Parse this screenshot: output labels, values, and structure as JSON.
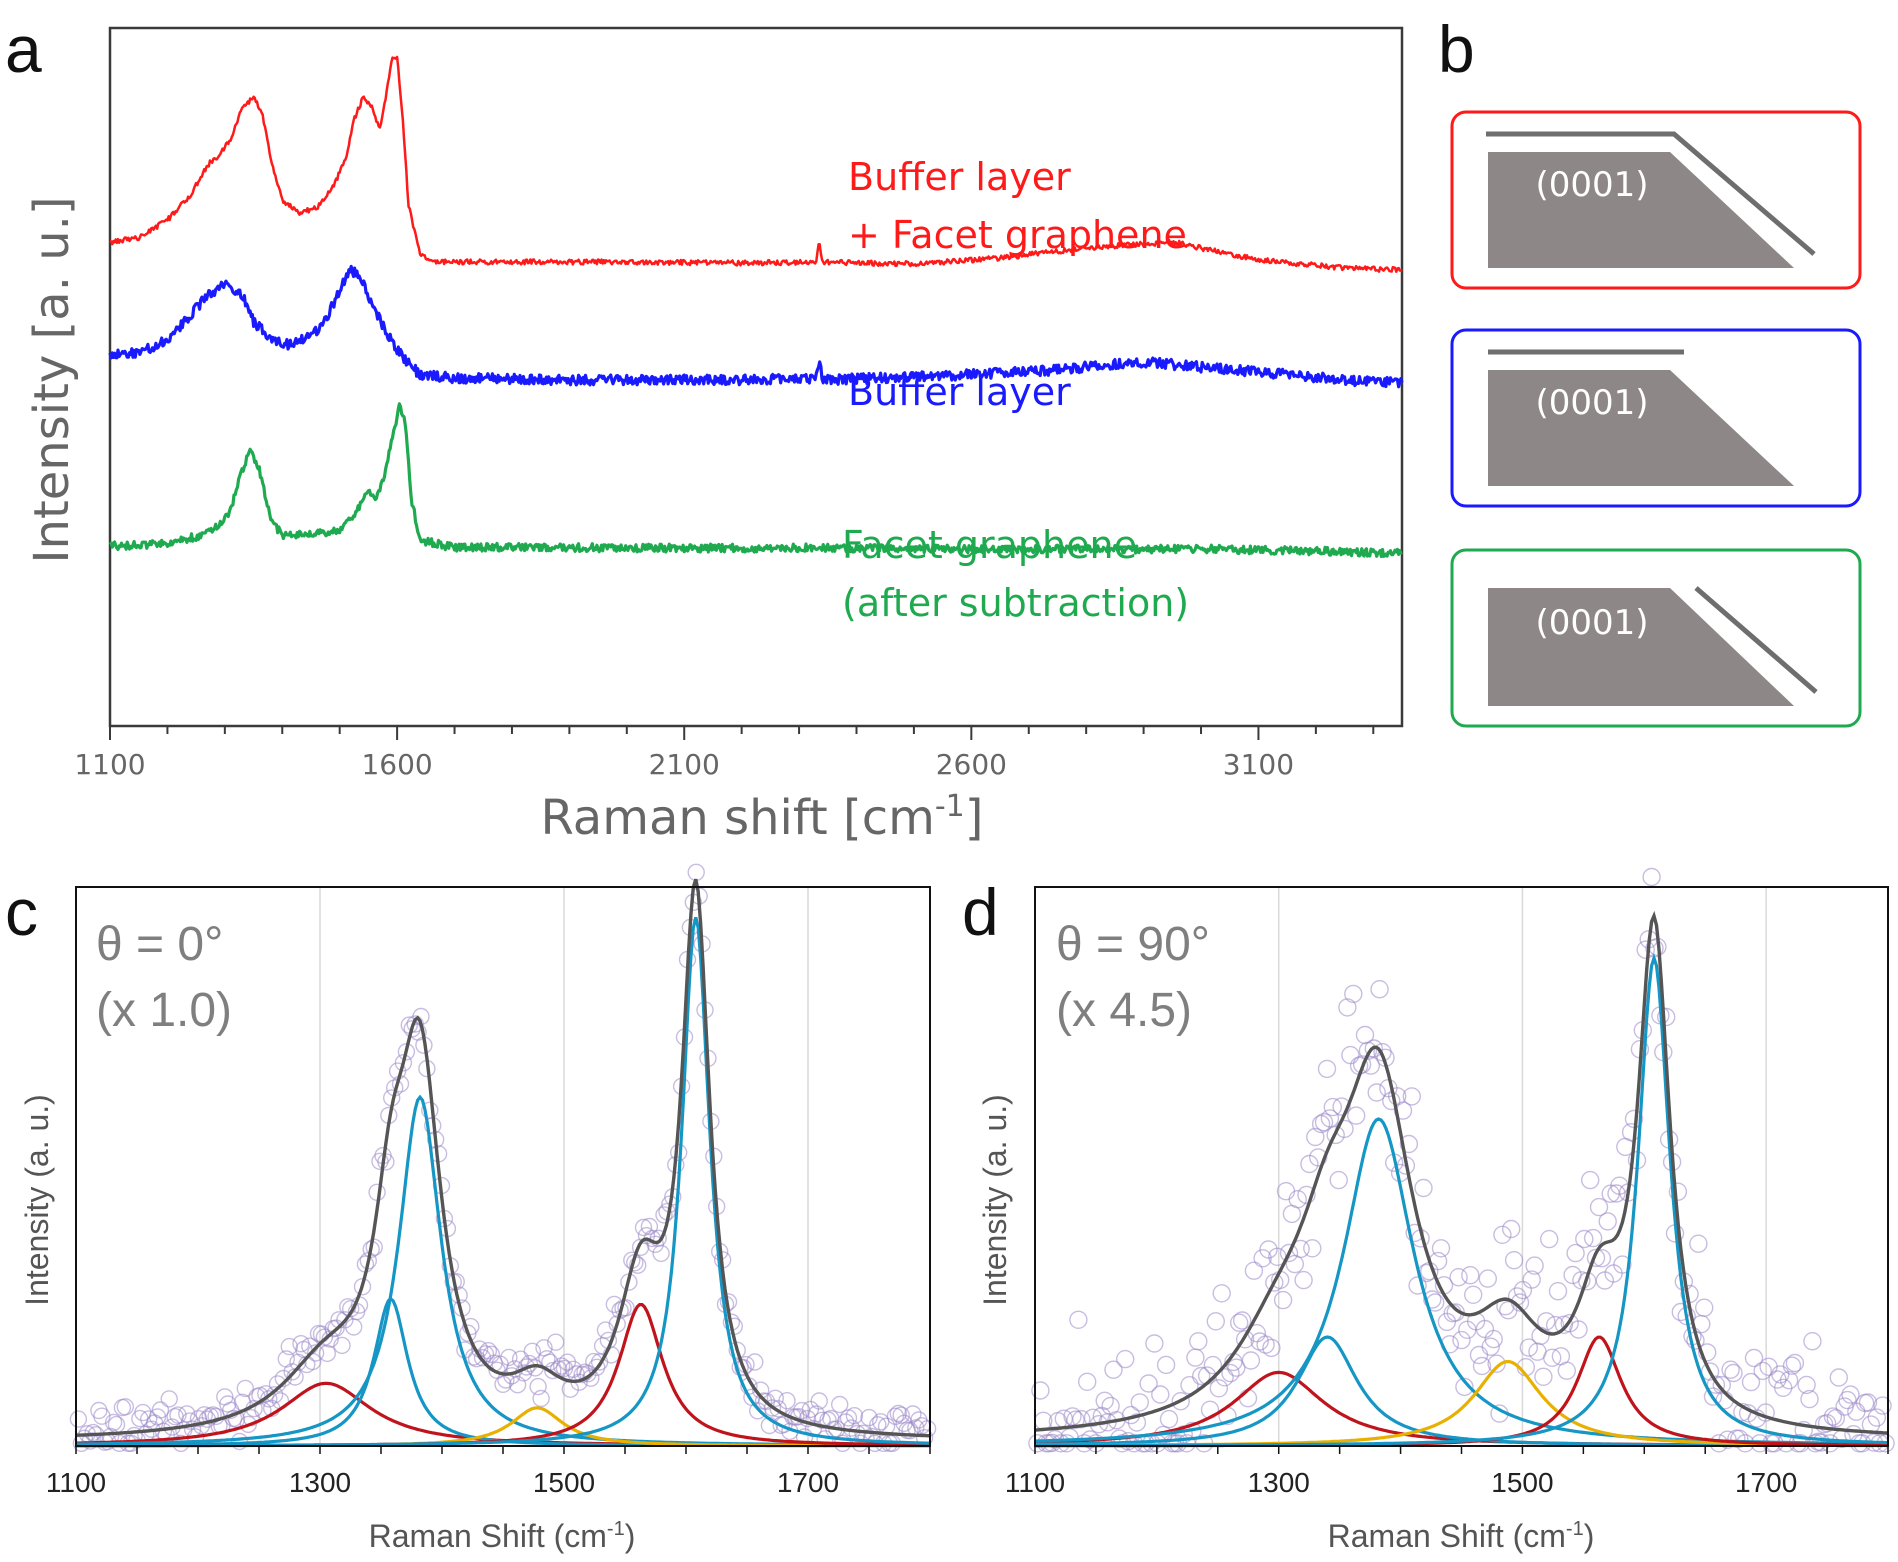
{
  "figure": {
    "panel_letters": [
      "a",
      "b",
      "c",
      "d"
    ]
  },
  "colors": {
    "red": "#ff1a1a",
    "blue": "#1a1aff",
    "green": "#1faa50",
    "gray": "#6e6e6e",
    "cyan": "#1596c4",
    "crimson": "#c0141c",
    "gold": "#e8b000",
    "envelope": "#555555",
    "dots": "#9b86c8"
  },
  "chart_data": [
    {
      "id": "a",
      "type": "line",
      "xlabel": "Raman shift [cm-1]",
      "xlabel_main": "Raman shift [cm",
      "xlabel_sup": "-1",
      "xlabel_tail": "]",
      "ylabel": "Intensity [a. u.]",
      "xlim": [
        1100,
        3350
      ],
      "x_ticks": [
        1100,
        1600,
        2100,
        2600,
        3100
      ],
      "series": [
        {
          "name": "Buffer layer + Facet graphene",
          "label_lines": [
            "Buffer layer",
            "+ Facet graphene"
          ],
          "color_key": "red",
          "noise": 2.5,
          "points": [
            [
              1100,
              242
            ],
            [
              1150,
              238
            ],
            [
              1200,
              220
            ],
            [
              1240,
              195
            ],
            [
              1270,
              165
            ],
            [
              1290,
              155
            ],
            [
              1310,
              140
            ],
            [
              1330,
              108
            ],
            [
              1350,
              97
            ],
            [
              1365,
              112
            ],
            [
              1380,
              160
            ],
            [
              1400,
              200
            ],
            [
              1430,
              213
            ],
            [
              1460,
              208
            ],
            [
              1490,
              185
            ],
            [
              1510,
              160
            ],
            [
              1525,
              120
            ],
            [
              1540,
              98
            ],
            [
              1555,
              106
            ],
            [
              1570,
              128
            ],
            [
              1580,
              100
            ],
            [
              1590,
              60
            ],
            [
              1600,
              58
            ],
            [
              1610,
              120
            ],
            [
              1620,
              205
            ],
            [
              1640,
              255
            ],
            [
              1670,
              262
            ],
            [
              1800,
              262
            ],
            [
              2000,
              262
            ],
            [
              2200,
              263
            ],
            [
              2330,
              262
            ],
            [
              2335,
              240
            ],
            [
              2340,
              262
            ],
            [
              2500,
              264
            ],
            [
              2650,
              258
            ],
            [
              2800,
              248
            ],
            [
              2950,
              242
            ],
            [
              3100,
              260
            ],
            [
              3250,
              268
            ],
            [
              3350,
              270
            ]
          ]
        },
        {
          "name": "Buffer layer",
          "label_lines": [
            "Buffer layer"
          ],
          "color_key": "blue",
          "noise": 5,
          "points": [
            [
              1100,
              355
            ],
            [
              1150,
              353
            ],
            [
              1200,
              340
            ],
            [
              1240,
              315
            ],
            [
              1270,
              295
            ],
            [
              1300,
              284
            ],
            [
              1330,
              295
            ],
            [
              1350,
              322
            ],
            [
              1380,
              338
            ],
            [
              1410,
              345
            ],
            [
              1430,
              340
            ],
            [
              1460,
              330
            ],
            [
              1480,
              315
            ],
            [
              1500,
              290
            ],
            [
              1520,
              270
            ],
            [
              1540,
              280
            ],
            [
              1560,
              310
            ],
            [
              1580,
              330
            ],
            [
              1600,
              350
            ],
            [
              1640,
              375
            ],
            [
              1700,
              378
            ],
            [
              1900,
              380
            ],
            [
              2200,
              380
            ],
            [
              2330,
              378
            ],
            [
              2335,
              358
            ],
            [
              2340,
              380
            ],
            [
              2500,
              377
            ],
            [
              2700,
              372
            ],
            [
              2900,
              362
            ],
            [
              3100,
              372
            ],
            [
              3250,
              380
            ],
            [
              3350,
              383
            ]
          ]
        },
        {
          "name": "Facet graphene (after subtraction)",
          "label_lines": [
            "Facet graphene",
            "(after subtraction)"
          ],
          "color_key": "green",
          "noise": 4,
          "points": [
            [
              1100,
              546
            ],
            [
              1200,
              544
            ],
            [
              1260,
              535
            ],
            [
              1290,
              525
            ],
            [
              1310,
              510
            ],
            [
              1330,
              470
            ],
            [
              1345,
              450
            ],
            [
              1360,
              470
            ],
            [
              1380,
              520
            ],
            [
              1400,
              535
            ],
            [
              1450,
              535
            ],
            [
              1500,
              530
            ],
            [
              1530,
              510
            ],
            [
              1550,
              490
            ],
            [
              1565,
              498
            ],
            [
              1580,
              470
            ],
            [
              1595,
              430
            ],
            [
              1605,
              405
            ],
            [
              1615,
              425
            ],
            [
              1625,
              500
            ],
            [
              1640,
              540
            ],
            [
              1700,
              548
            ],
            [
              1800,
              547
            ],
            [
              2000,
              548
            ],
            [
              2200,
              548
            ],
            [
              2400,
              548
            ],
            [
              2600,
              549
            ],
            [
              2800,
              549
            ],
            [
              3000,
              549
            ],
            [
              3200,
              551
            ],
            [
              3350,
              553
            ]
          ]
        }
      ]
    },
    {
      "id": "c",
      "type": "scatter",
      "angle_label": "θ = 0°",
      "scale_label": "(x 1.0)",
      "xlabel": "Raman Shift (cm-1)",
      "xlabel_main": "Raman Shift (cm",
      "xlabel_sup": "-1",
      "xlabel_tail": ")",
      "ylabel": "Intensity (a. u.)",
      "xlim": [
        1100,
        1800
      ],
      "ylim": [
        0,
        1.0
      ],
      "x_ticks": [
        1100,
        1300,
        1500,
        1700
      ],
      "noise": 0.018,
      "peaks": [
        {
          "center": 1305,
          "amplitude": 0.115,
          "hwhm": 45,
          "color_key": "crimson"
        },
        {
          "center": 1358,
          "amplitude": 0.27,
          "hwhm": 17,
          "color_key": "cyan"
        },
        {
          "center": 1382,
          "amplitude": 0.64,
          "hwhm": 21,
          "color_key": "cyan"
        },
        {
          "center": 1478,
          "amplitude": 0.07,
          "hwhm": 26,
          "color_key": "gold"
        },
        {
          "center": 1563,
          "amplitude": 0.26,
          "hwhm": 22,
          "color_key": "crimson"
        },
        {
          "center": 1608,
          "amplitude": 0.97,
          "hwhm": 14,
          "color_key": "cyan"
        }
      ]
    },
    {
      "id": "d",
      "type": "scatter",
      "angle_label": "θ = 90°",
      "scale_label": "(x 4.5)",
      "xlabel": "Raman Shift (cm-1)",
      "xlabel_main": "Raman Shift (cm",
      "xlabel_sup": "-1",
      "xlabel_tail": ")",
      "ylabel": "Intensity (a. u.)",
      "xlim": [
        1100,
        1800
      ],
      "ylim": [
        0,
        1.0
      ],
      "x_ticks": [
        1100,
        1300,
        1500,
        1700
      ],
      "noise": 0.06,
      "peaks": [
        {
          "center": 1300,
          "amplitude": 0.135,
          "hwhm": 45,
          "color_key": "crimson"
        },
        {
          "center": 1340,
          "amplitude": 0.2,
          "hwhm": 30,
          "color_key": "cyan"
        },
        {
          "center": 1382,
          "amplitude": 0.6,
          "hwhm": 35,
          "color_key": "cyan"
        },
        {
          "center": 1488,
          "amplitude": 0.155,
          "hwhm": 34,
          "color_key": "gold"
        },
        {
          "center": 1563,
          "amplitude": 0.2,
          "hwhm": 22,
          "color_key": "crimson"
        },
        {
          "center": 1608,
          "amplitude": 0.895,
          "hwhm": 16,
          "color_key": "cyan"
        }
      ]
    }
  ],
  "schematics": [
    {
      "id": "b-buffer-facet",
      "label": "(0001)",
      "border_key": "red",
      "buffer_layer": true,
      "facet_graphene": true
    },
    {
      "id": "b-buffer",
      "label": "(0001)",
      "border_key": "blue",
      "buffer_layer": true,
      "facet_graphene": false
    },
    {
      "id": "b-facet",
      "label": "(0001)",
      "border_key": "green",
      "buffer_layer": false,
      "facet_graphene": true
    }
  ]
}
